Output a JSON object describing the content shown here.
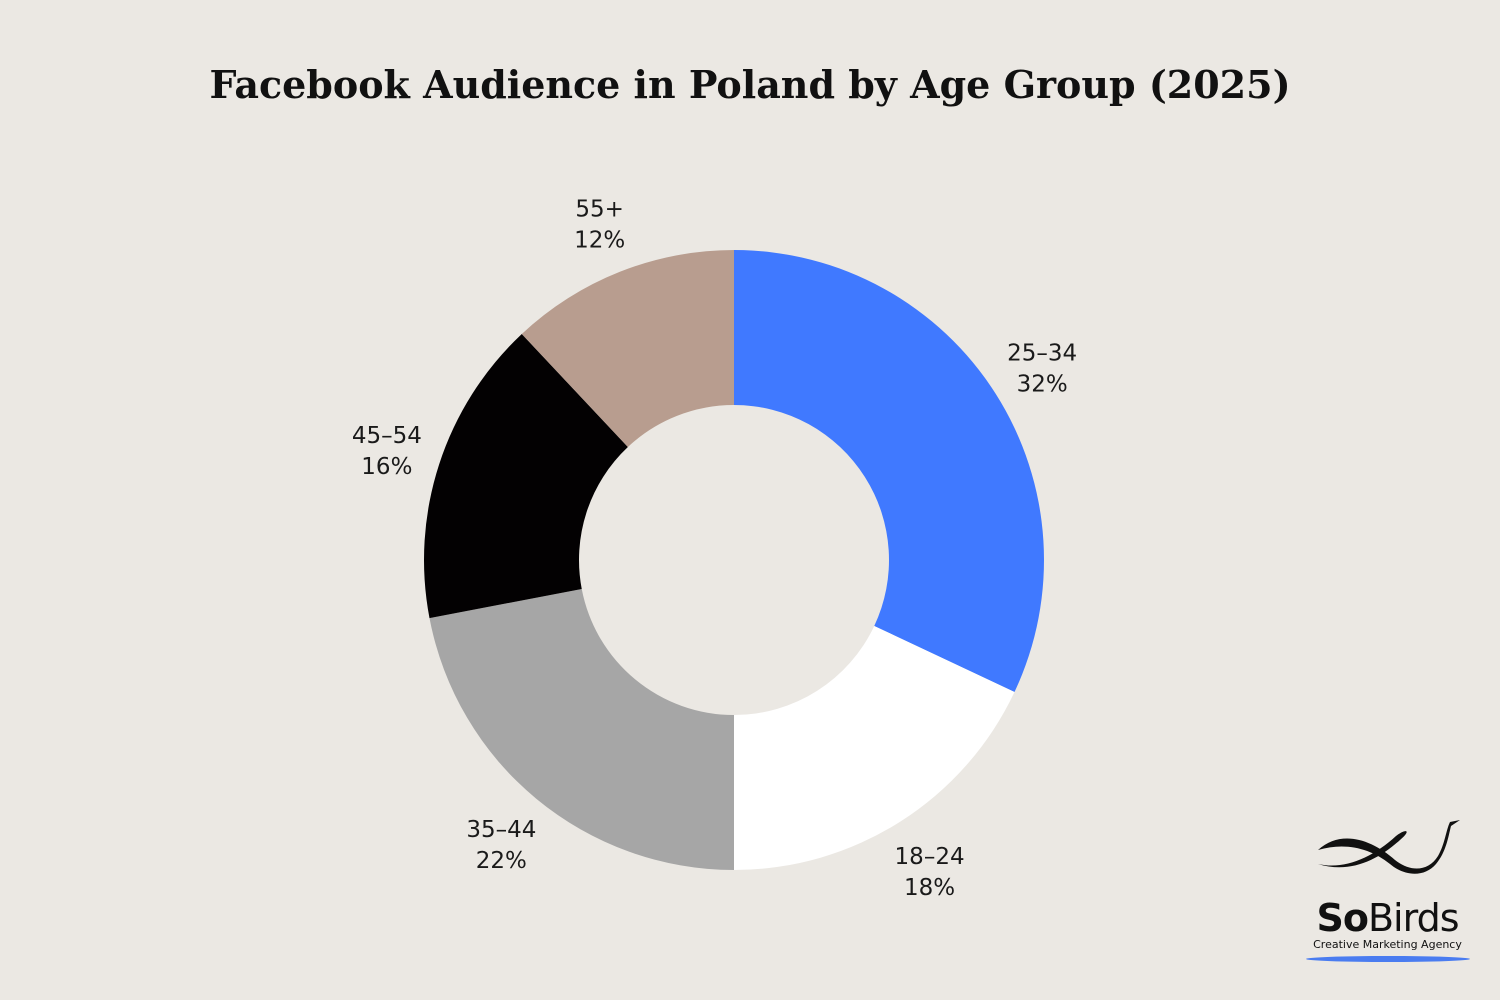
{
  "chart_data": {
    "type": "pie",
    "title": "Facebook Audience in Poland by Age Group (2025)",
    "categories": [
      "25–34",
      "18–24",
      "35–44",
      "45–54",
      "55+"
    ],
    "values": [
      32,
      18,
      22,
      16,
      12
    ],
    "value_labels": [
      "32%",
      "18%",
      "22%",
      "16%",
      "12%"
    ],
    "colors": [
      "#4079ff",
      "#ffffff",
      "#a6a6a6",
      "#030102",
      "#b89d8f"
    ],
    "donut": true,
    "legend": "none",
    "background": "#ebe8e3"
  },
  "logo": {
    "word_bold": "So",
    "word_light": "Birds",
    "tagline": "Creative Marketing Agency",
    "icon": "bird-icon",
    "underline_color": "#4a7cf0"
  }
}
